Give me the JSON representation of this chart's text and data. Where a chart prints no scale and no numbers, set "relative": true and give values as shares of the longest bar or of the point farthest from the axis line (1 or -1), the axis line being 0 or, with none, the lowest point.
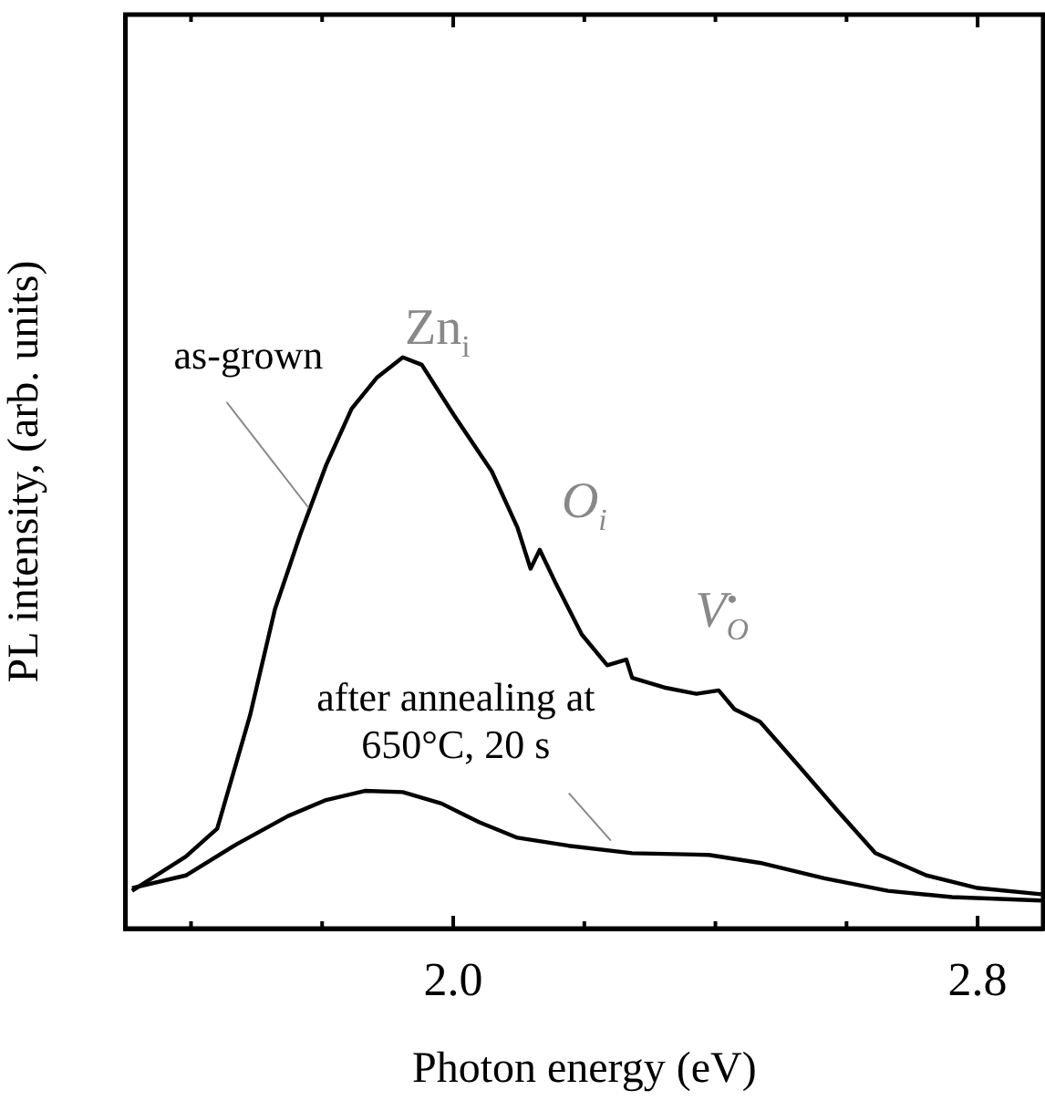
{
  "chart_data": {
    "type": "line",
    "xlabel": "Photon energy (eV)",
    "ylabel": "PL intensity, (arb. units)",
    "relative": true,
    "xlim": [
      1.5,
      2.9
    ],
    "xticks": [
      {
        "value": 1.6,
        "label": null
      },
      {
        "value": 1.8,
        "label": null
      },
      {
        "value": 2.0,
        "label": "2.0"
      },
      {
        "value": 2.2,
        "label": null
      },
      {
        "value": 2.4,
        "label": null
      },
      {
        "value": 2.6,
        "label": null
      },
      2.8
    ],
    "marker": "none",
    "line_style": "solid",
    "grid": false,
    "legend": false,
    "series": [
      {
        "color": "#000000",
        "x": [
          1.51,
          1.592,
          1.64,
          1.69,
          1.728,
          1.767,
          1.806,
          1.845,
          1.884,
          1.923,
          1.952,
          2.001,
          2.059,
          2.098,
          2.118,
          2.132,
          2.157,
          2.196,
          2.235,
          2.264,
          2.273,
          2.322,
          2.371,
          2.405,
          2.429,
          2.468,
          2.527,
          2.585,
          2.644,
          2.722,
          2.8,
          2.897
        ],
        "values": [
          0.066,
          0.126,
          0.175,
          0.373,
          0.559,
          0.691,
          0.811,
          0.91,
          0.965,
          1.0,
          0.987,
          0.899,
          0.8,
          0.702,
          0.63,
          0.663,
          0.603,
          0.515,
          0.461,
          0.471,
          0.439,
          0.422,
          0.411,
          0.417,
          0.384,
          0.362,
          0.285,
          0.208,
          0.132,
          0.093,
          0.071,
          0.06
        ]
      },
      {
        "color": "#000000",
        "x": [
          1.51,
          1.592,
          1.67,
          1.748,
          1.806,
          1.865,
          1.923,
          1.982,
          2.04,
          2.098,
          2.176,
          2.273,
          2.39,
          2.468,
          2.566,
          2.663,
          2.761,
          2.897
        ],
        "values": [
          0.071,
          0.093,
          0.148,
          0.197,
          0.225,
          0.241,
          0.239,
          0.219,
          0.186,
          0.159,
          0.145,
          0.132,
          0.129,
          0.115,
          0.088,
          0.066,
          0.055,
          0.049
        ]
      }
    ],
    "annotations": [
      "Zn$_{i}$",
      "O$_{i}$",
      "V$_{O}$$^{•}$",
      "as-grown",
      "after annealing at 650°C, 20 s"
    ]
  }
}
